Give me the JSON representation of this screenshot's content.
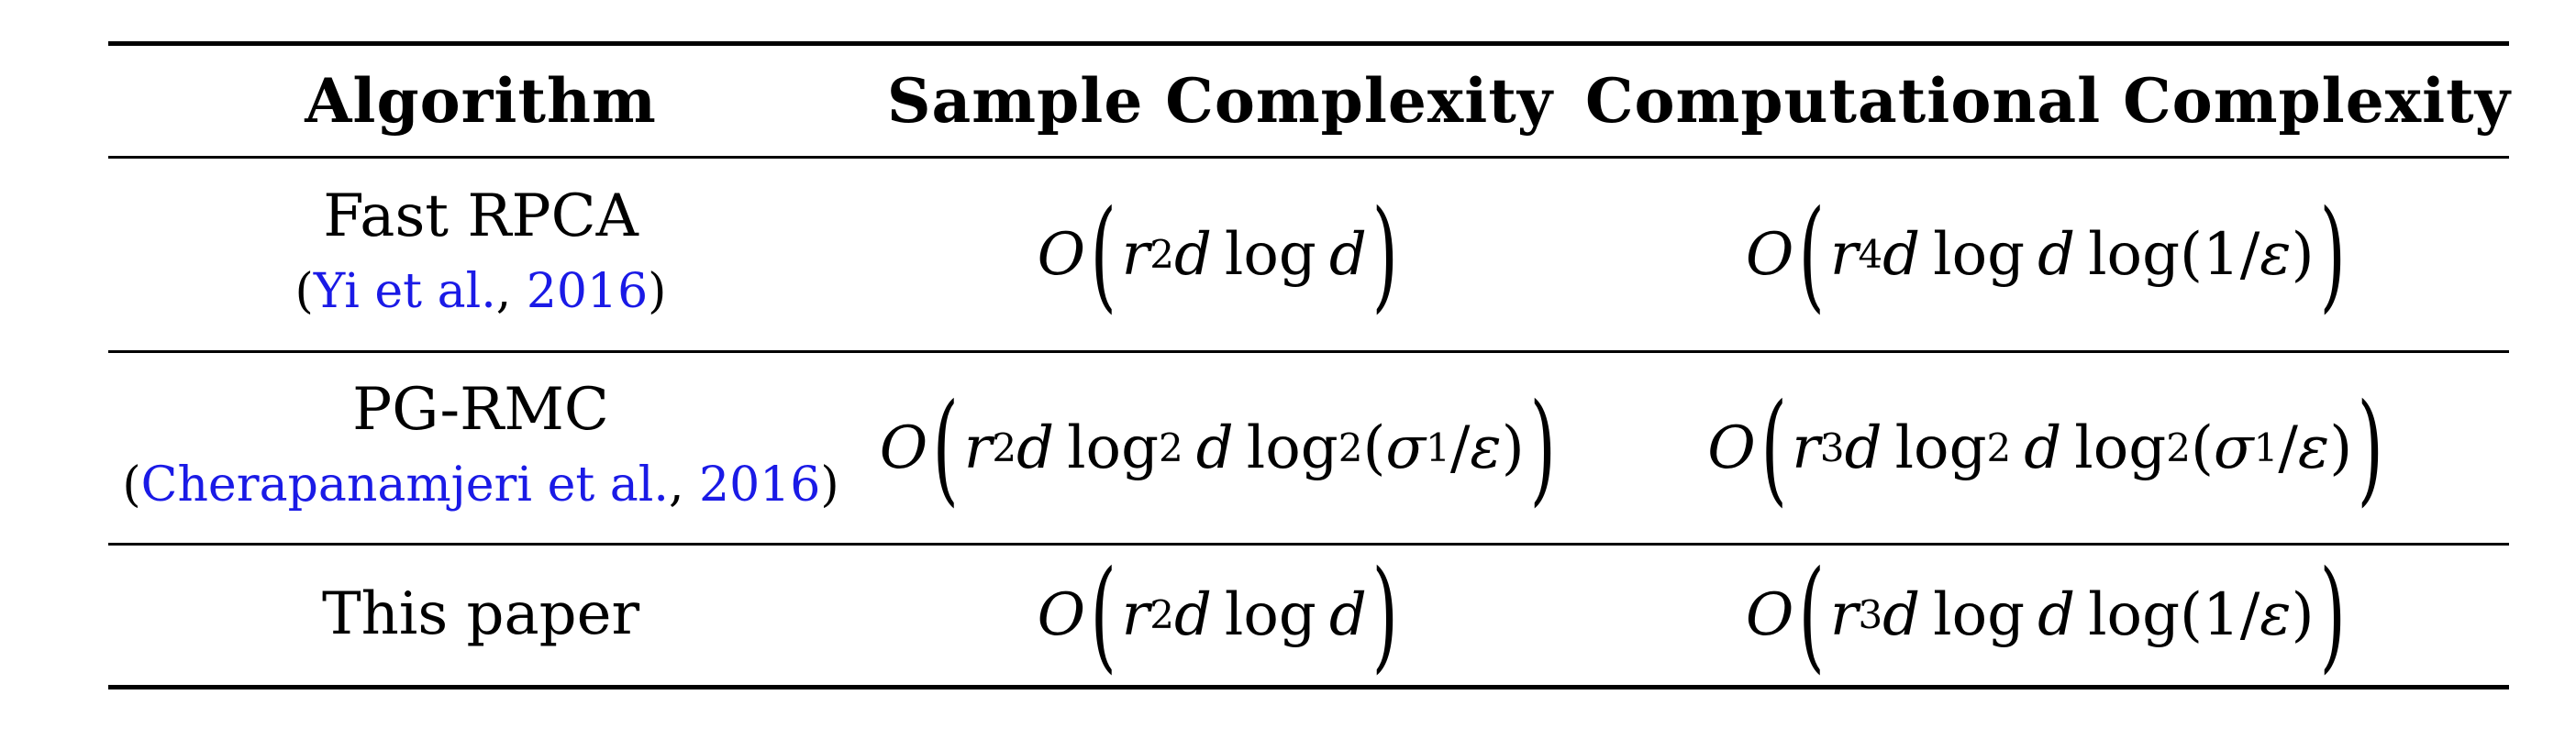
{
  "table": {
    "headers": [
      "Algorithm",
      "Sample Complexity",
      "Computational Complexity"
    ],
    "rows": [
      {
        "algorithm": "Fast RPCA",
        "citation": {
          "open": "(",
          "authors": "Yi et al.",
          "sep": ", ",
          "year": "2016",
          "close": ")"
        },
        "sample_complexity": "O(r^2 d log d)",
        "computational_complexity": "O(r^4 d log d log(1/ε))"
      },
      {
        "algorithm": "PG-RMC",
        "citation": {
          "open": "(",
          "authors": "Cherapanamjeri et al.",
          "sep": ", ",
          "year": "2016",
          "close": ")"
        },
        "sample_complexity": "O(r^2 d log^2 d log^2(σ_1/ε))",
        "computational_complexity": "O(r^3 d log^2 d log^2(σ_1/ε))"
      },
      {
        "algorithm": "This paper",
        "citation": null,
        "sample_complexity": "O(r^2 d log d)",
        "computational_complexity": "O(r^3 d log d log(1/ε))"
      }
    ]
  },
  "colors": {
    "citation_link": "#1a1ae6",
    "rule": "#000000"
  }
}
